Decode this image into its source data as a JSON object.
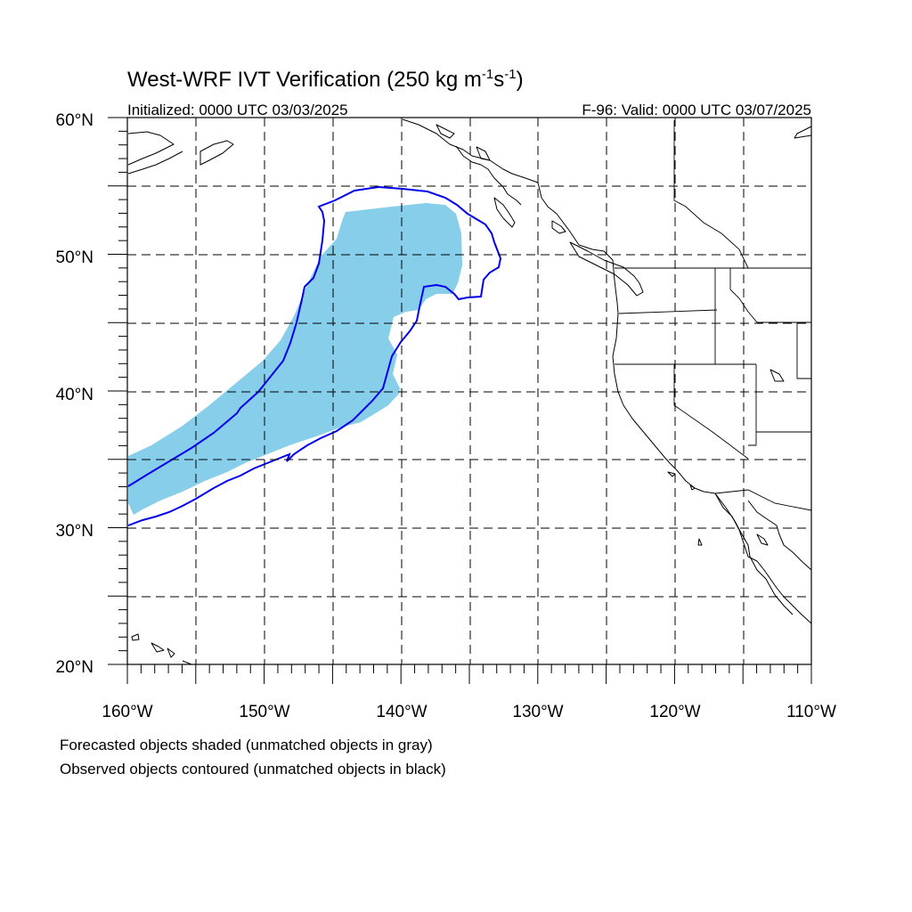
{
  "title": "West-WRF IVT Verification (250 kg m",
  "title_unit_parts": [
    "-1",
    "s",
    "-1",
    ")"
  ],
  "initialized": "Initialized: 0000 UTC 03/03/2025",
  "valid": "F-96: Valid: 0000 UTC 03/07/2025",
  "lat_labels": [
    "60°N",
    "50°N",
    "40°N",
    "30°N",
    "20°N"
  ],
  "lon_labels": [
    "160°W",
    "150°W",
    "140°W",
    "130°W",
    "120°W",
    "110°W"
  ],
  "caption_line1": "Forecasted objects shaded (unmatched objects in gray)",
  "caption_line2": "Observed objects contoured (unmatched objects in black)",
  "colors": {
    "forecast_fill": "#87ceeb",
    "observed_contour": "#0000ee",
    "coastline": "#000000"
  },
  "map_extent": {
    "lon_min": -160,
    "lon_max": -110,
    "lat_min": 20,
    "lat_max": 60
  }
}
